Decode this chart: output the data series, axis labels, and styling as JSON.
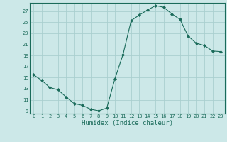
{
  "x": [
    0,
    1,
    2,
    3,
    4,
    5,
    6,
    7,
    8,
    9,
    10,
    11,
    12,
    13,
    14,
    15,
    16,
    17,
    18,
    19,
    20,
    21,
    22,
    23
  ],
  "y": [
    15.5,
    14.5,
    13.2,
    12.8,
    11.5,
    10.3,
    10.0,
    9.3,
    9.0,
    9.5,
    14.8,
    19.2,
    25.3,
    26.3,
    27.2,
    28.0,
    27.7,
    26.5,
    25.5,
    22.5,
    21.2,
    20.8,
    19.8,
    19.7
  ],
  "line_color": "#1a6b5a",
  "marker": "D",
  "marker_size": 2.0,
  "bg_color": "#cce8e8",
  "grid_color": "#aacfcf",
  "xlabel": "Humidex (Indice chaleur)",
  "xlim": [
    -0.5,
    23.5
  ],
  "ylim": [
    8.5,
    28.5
  ],
  "yticks": [
    9,
    11,
    13,
    15,
    17,
    19,
    21,
    23,
    25,
    27
  ],
  "xticks": [
    0,
    1,
    2,
    3,
    4,
    5,
    6,
    7,
    8,
    9,
    10,
    11,
    12,
    13,
    14,
    15,
    16,
    17,
    18,
    19,
    20,
    21,
    22,
    23
  ],
  "tick_fontsize": 5.0,
  "xlabel_fontsize": 6.5
}
